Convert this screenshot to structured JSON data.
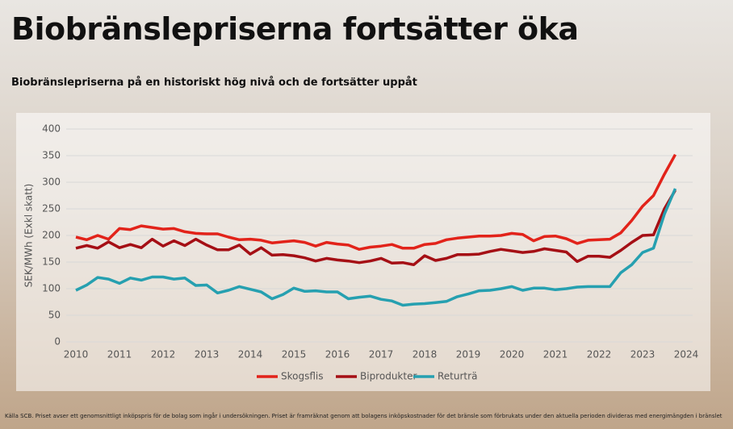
{
  "chart_data": {
    "type": "line",
    "title": "Biobränslepriserna fortsätter öka",
    "subtitle": "Biobränslepriserna på en historiskt hög nivå och de fortsätter uppåt",
    "y_label": "SEK/MWh (Exkl skatt)",
    "source": "Källa SCB. Priset avser ett genomsnittligt inköpspris för de bolag som ingår i undersökningen. Priset är framräknat genom att bolagens inköpskostnader för det bränsle som förbrukats under den aktuella perioden divideras med energimängden i bränslet",
    "legend": "bottom",
    "grid": true,
    "xlim": [
      2010,
      2024
    ],
    "xticks": [
      2010,
      2011,
      2012,
      2013,
      2014,
      2015,
      2016,
      2017,
      2018,
      2019,
      2020,
      2021,
      2022,
      2023,
      2024
    ],
    "ylim": [
      0,
      400
    ],
    "yticks": [
      0,
      50,
      100,
      150,
      200,
      250,
      300,
      350,
      400
    ],
    "x": [
      2010,
      2010.25,
      2010.5,
      2010.75,
      2011,
      2011.25,
      2011.5,
      2011.75,
      2012,
      2012.25,
      2012.5,
      2012.75,
      2013,
      2013.25,
      2013.5,
      2013.75,
      2014,
      2014.25,
      2014.5,
      2014.75,
      2015,
      2015.25,
      2015.5,
      2015.75,
      2016,
      2016.25,
      2016.5,
      2016.75,
      2017,
      2017.25,
      2017.5,
      2017.75,
      2018,
      2018.25,
      2018.5,
      2018.75,
      2019,
      2019.25,
      2019.5,
      2019.75,
      2020,
      2020.25,
      2020.5,
      2020.75,
      2021,
      2021.25,
      2021.5,
      2021.75,
      2022,
      2022.25,
      2022.5,
      2022.75,
      2023,
      2023.25,
      2023.5,
      2023.75
    ],
    "series": [
      {
        "name": "Skogsflis",
        "color": "#e2231a",
        "values": [
          197,
          192,
          200,
          193,
          213,
          211,
          218,
          215,
          212,
          213,
          207,
          204,
          203,
          203,
          197,
          192,
          193,
          191,
          186,
          188,
          190,
          187,
          180,
          187,
          184,
          182,
          174,
          178,
          180,
          183,
          176,
          176,
          183,
          185,
          192,
          195,
          197,
          199,
          199,
          200,
          204,
          202,
          190,
          198,
          199,
          194,
          185,
          191,
          192,
          193,
          205,
          228,
          255,
          275,
          315,
          352
        ]
      },
      {
        "name": "Biprodukter",
        "color": "#a50f15",
        "values": [
          176,
          181,
          176,
          188,
          177,
          183,
          177,
          193,
          180,
          190,
          181,
          193,
          182,
          173,
          173,
          182,
          165,
          177,
          163,
          164,
          162,
          158,
          152,
          157,
          154,
          152,
          149,
          152,
          157,
          148,
          149,
          145,
          162,
          153,
          157,
          164,
          164,
          165,
          170,
          174,
          171,
          168,
          170,
          175,
          172,
          169,
          151,
          161,
          161,
          159,
          172,
          187,
          200,
          201,
          250,
          285
        ]
      },
      {
        "name": "Returträ",
        "color": "#26a0b0",
        "values": [
          97,
          107,
          121,
          118,
          110,
          120,
          116,
          122,
          122,
          118,
          120,
          106,
          107,
          92,
          97,
          104,
          99,
          94,
          81,
          89,
          101,
          95,
          96,
          94,
          94,
          81,
          84,
          86,
          80,
          77,
          69,
          71,
          72,
          74,
          76,
          85,
          90,
          96,
          97,
          100,
          104,
          97,
          101,
          101,
          98,
          100,
          103,
          104,
          104,
          104,
          130,
          145,
          168,
          176,
          240,
          288
        ]
      }
    ]
  }
}
